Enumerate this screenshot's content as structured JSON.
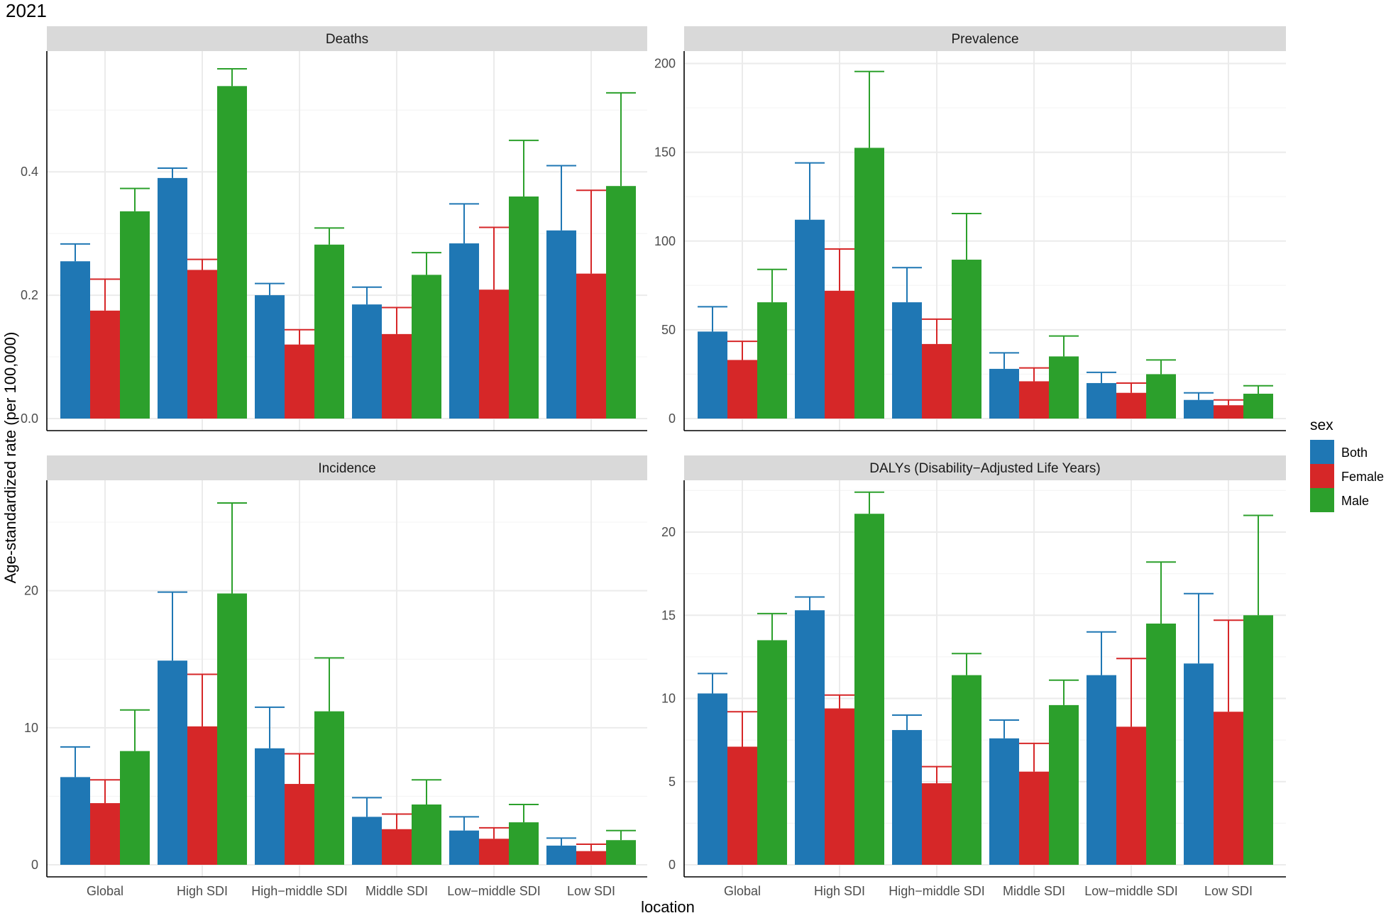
{
  "title": "2021",
  "xlabel": "location",
  "ylabel": "Age-standardized rate (per 100,000)",
  "legend": {
    "title": "sex",
    "entries": [
      "Both",
      "Female",
      "Male"
    ]
  },
  "colors": {
    "Both": "#1f77b4",
    "Female": "#d62728",
    "Male": "#2ca02c"
  },
  "chart_data": [
    {
      "type": "bar",
      "title": "Deaths",
      "categories": [
        "Global",
        "High SDI",
        "High−middle SDI",
        "Middle SDI",
        "Low−middle SDI",
        "Low SDI"
      ],
      "ylim": [
        0,
        0.59
      ],
      "yticks": [
        0.0,
        0.2,
        0.4
      ],
      "ytick_labels": [
        "0.0",
        "0.2",
        "0.4"
      ],
      "series": [
        {
          "name": "Both",
          "values": [
            0.255,
            0.39,
            0.2,
            0.185,
            0.284,
            0.305
          ],
          "upper": [
            0.283,
            0.406,
            0.219,
            0.213,
            0.348,
            0.41
          ]
        },
        {
          "name": "Female",
          "values": [
            0.175,
            0.241,
            0.12,
            0.137,
            0.209,
            0.235
          ],
          "upper": [
            0.226,
            0.258,
            0.144,
            0.18,
            0.31,
            0.37
          ]
        },
        {
          "name": "Male",
          "values": [
            0.336,
            0.539,
            0.282,
            0.233,
            0.36,
            0.377
          ],
          "upper": [
            0.373,
            0.567,
            0.309,
            0.269,
            0.451,
            0.528
          ]
        }
      ]
    },
    {
      "type": "bar",
      "title": "Prevalence",
      "categories": [
        "Global",
        "High SDI",
        "High−middle SDI",
        "Middle SDI",
        "Low−middle SDI",
        "Low SDI"
      ],
      "ylim": [
        0,
        205
      ],
      "yticks": [
        0,
        50,
        100,
        150,
        200
      ],
      "ytick_labels": [
        "0",
        "50",
        "100",
        "150",
        "200"
      ],
      "series": [
        {
          "name": "Both",
          "values": [
            49,
            112,
            65.5,
            28,
            20,
            10.5
          ],
          "upper": [
            63,
            144,
            85,
            37,
            26,
            14.5
          ]
        },
        {
          "name": "Female",
          "values": [
            33,
            72,
            42,
            21,
            14.5,
            7.5
          ],
          "upper": [
            43.5,
            95.5,
            56,
            28.5,
            20,
            10.5
          ]
        },
        {
          "name": "Male",
          "values": [
            65.5,
            152.5,
            89.5,
            35,
            25,
            14
          ],
          "upper": [
            84,
            195.5,
            115.5,
            46.5,
            33,
            18.5
          ]
        }
      ]
    },
    {
      "type": "bar",
      "title": "Incidence",
      "categories": [
        "Global",
        "High SDI",
        "High−middle SDI",
        "Middle SDI",
        "Low−middle SDI",
        "Low SDI"
      ],
      "ylim": [
        0,
        27.8
      ],
      "yticks": [
        0,
        10,
        20
      ],
      "ytick_labels": [
        "0",
        "10",
        "20"
      ],
      "series": [
        {
          "name": "Both",
          "values": [
            6.4,
            14.9,
            8.5,
            3.5,
            2.5,
            1.4
          ],
          "upper": [
            8.6,
            19.9,
            11.5,
            4.9,
            3.5,
            1.95
          ]
        },
        {
          "name": "Female",
          "values": [
            4.5,
            10.1,
            5.9,
            2.6,
            1.9,
            1.0
          ],
          "upper": [
            6.2,
            13.9,
            8.1,
            3.7,
            2.7,
            1.5
          ]
        },
        {
          "name": "Male",
          "values": [
            8.3,
            19.8,
            11.2,
            4.4,
            3.1,
            1.8
          ],
          "upper": [
            11.3,
            26.4,
            15.1,
            6.2,
            4.4,
            2.5
          ]
        }
      ]
    },
    {
      "type": "bar",
      "title": "DALYs (Disability−Adjusted Life Years)",
      "categories": [
        "Global",
        "High SDI",
        "High−middle SDI",
        "Middle SDI",
        "Low−middle SDI",
        "Low SDI"
      ],
      "ylim": [
        0,
        22.9
      ],
      "yticks": [
        0,
        5,
        10,
        15,
        20
      ],
      "ytick_labels": [
        "0",
        "5",
        "10",
        "15",
        "20"
      ],
      "series": [
        {
          "name": "Both",
          "values": [
            10.3,
            15.3,
            8.1,
            7.6,
            11.4,
            12.1
          ],
          "upper": [
            11.5,
            16.1,
            9.0,
            8.7,
            14.0,
            16.3
          ]
        },
        {
          "name": "Female",
          "values": [
            7.1,
            9.4,
            4.9,
            5.6,
            8.3,
            9.2
          ],
          "upper": [
            9.2,
            10.2,
            5.9,
            7.3,
            12.4,
            14.7
          ]
        },
        {
          "name": "Male",
          "values": [
            13.5,
            21.1,
            11.4,
            9.6,
            14.5,
            15.0
          ],
          "upper": [
            15.1,
            22.4,
            12.7,
            11.1,
            18.2,
            21.0
          ]
        }
      ]
    }
  ]
}
